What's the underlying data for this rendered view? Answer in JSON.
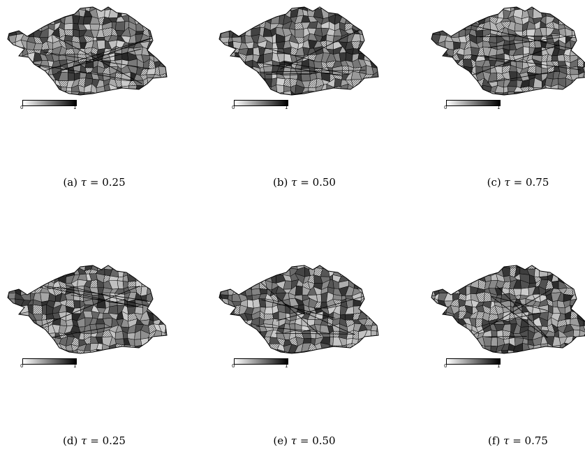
{
  "legend": {
    "min_label": "0",
    "max_label": "1",
    "gradient": [
      "#ffffff",
      "#000000"
    ]
  },
  "panels": [
    {
      "id": "a",
      "label": "(a)",
      "symbol": "τ",
      "eq": "=",
      "value": "0.25",
      "seed": 11
    },
    {
      "id": "b",
      "label": "(b)",
      "symbol": "τ",
      "eq": "=",
      "value": "0.50",
      "seed": 23
    },
    {
      "id": "c",
      "label": "(c)",
      "symbol": "τ",
      "eq": "=",
      "value": "0.75",
      "seed": 37
    },
    {
      "id": "d",
      "label": "(d)",
      "symbol": "τ",
      "eq": "=",
      "value": "0.25",
      "seed": 41
    },
    {
      "id": "e",
      "label": "(e)",
      "symbol": "τ",
      "eq": "=",
      "value": "0.50",
      "seed": 53
    },
    {
      "id": "f",
      "label": "(f)",
      "symbol": "τ",
      "eq": "=",
      "value": "0.75",
      "seed": 67
    }
  ]
}
